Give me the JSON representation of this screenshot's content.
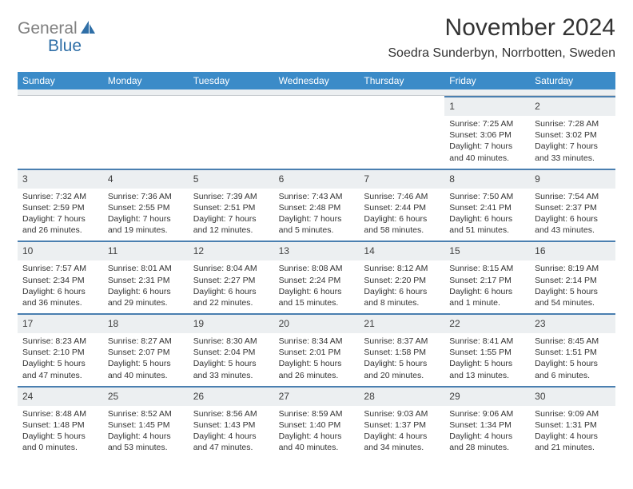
{
  "colors": {
    "header_bg": "#3b8bc8",
    "cell_rule": "#4a7fb0",
    "daynum_bg": "#eceff1",
    "logo_gray": "#808080",
    "logo_blue": "#2f6fa7",
    "text": "#333333"
  },
  "logo": {
    "gray": "General",
    "blue": "Blue"
  },
  "title": "November 2024",
  "location": "Soedra Sunderbyn, Norrbotten, Sweden",
  "weekdays": [
    "Sunday",
    "Monday",
    "Tuesday",
    "Wednesday",
    "Thursday",
    "Friday",
    "Saturday"
  ],
  "weeks": [
    [
      null,
      null,
      null,
      null,
      null,
      {
        "n": "1",
        "sr": "Sunrise: 7:25 AM",
        "ss": "Sunset: 3:06 PM",
        "d1": "Daylight: 7 hours",
        "d2": "and 40 minutes."
      },
      {
        "n": "2",
        "sr": "Sunrise: 7:28 AM",
        "ss": "Sunset: 3:02 PM",
        "d1": "Daylight: 7 hours",
        "d2": "and 33 minutes."
      }
    ],
    [
      {
        "n": "3",
        "sr": "Sunrise: 7:32 AM",
        "ss": "Sunset: 2:59 PM",
        "d1": "Daylight: 7 hours",
        "d2": "and 26 minutes."
      },
      {
        "n": "4",
        "sr": "Sunrise: 7:36 AM",
        "ss": "Sunset: 2:55 PM",
        "d1": "Daylight: 7 hours",
        "d2": "and 19 minutes."
      },
      {
        "n": "5",
        "sr": "Sunrise: 7:39 AM",
        "ss": "Sunset: 2:51 PM",
        "d1": "Daylight: 7 hours",
        "d2": "and 12 minutes."
      },
      {
        "n": "6",
        "sr": "Sunrise: 7:43 AM",
        "ss": "Sunset: 2:48 PM",
        "d1": "Daylight: 7 hours",
        "d2": "and 5 minutes."
      },
      {
        "n": "7",
        "sr": "Sunrise: 7:46 AM",
        "ss": "Sunset: 2:44 PM",
        "d1": "Daylight: 6 hours",
        "d2": "and 58 minutes."
      },
      {
        "n": "8",
        "sr": "Sunrise: 7:50 AM",
        "ss": "Sunset: 2:41 PM",
        "d1": "Daylight: 6 hours",
        "d2": "and 51 minutes."
      },
      {
        "n": "9",
        "sr": "Sunrise: 7:54 AM",
        "ss": "Sunset: 2:37 PM",
        "d1": "Daylight: 6 hours",
        "d2": "and 43 minutes."
      }
    ],
    [
      {
        "n": "10",
        "sr": "Sunrise: 7:57 AM",
        "ss": "Sunset: 2:34 PM",
        "d1": "Daylight: 6 hours",
        "d2": "and 36 minutes."
      },
      {
        "n": "11",
        "sr": "Sunrise: 8:01 AM",
        "ss": "Sunset: 2:31 PM",
        "d1": "Daylight: 6 hours",
        "d2": "and 29 minutes."
      },
      {
        "n": "12",
        "sr": "Sunrise: 8:04 AM",
        "ss": "Sunset: 2:27 PM",
        "d1": "Daylight: 6 hours",
        "d2": "and 22 minutes."
      },
      {
        "n": "13",
        "sr": "Sunrise: 8:08 AM",
        "ss": "Sunset: 2:24 PM",
        "d1": "Daylight: 6 hours",
        "d2": "and 15 minutes."
      },
      {
        "n": "14",
        "sr": "Sunrise: 8:12 AM",
        "ss": "Sunset: 2:20 PM",
        "d1": "Daylight: 6 hours",
        "d2": "and 8 minutes."
      },
      {
        "n": "15",
        "sr": "Sunrise: 8:15 AM",
        "ss": "Sunset: 2:17 PM",
        "d1": "Daylight: 6 hours",
        "d2": "and 1 minute."
      },
      {
        "n": "16",
        "sr": "Sunrise: 8:19 AM",
        "ss": "Sunset: 2:14 PM",
        "d1": "Daylight: 5 hours",
        "d2": "and 54 minutes."
      }
    ],
    [
      {
        "n": "17",
        "sr": "Sunrise: 8:23 AM",
        "ss": "Sunset: 2:10 PM",
        "d1": "Daylight: 5 hours",
        "d2": "and 47 minutes."
      },
      {
        "n": "18",
        "sr": "Sunrise: 8:27 AM",
        "ss": "Sunset: 2:07 PM",
        "d1": "Daylight: 5 hours",
        "d2": "and 40 minutes."
      },
      {
        "n": "19",
        "sr": "Sunrise: 8:30 AM",
        "ss": "Sunset: 2:04 PM",
        "d1": "Daylight: 5 hours",
        "d2": "and 33 minutes."
      },
      {
        "n": "20",
        "sr": "Sunrise: 8:34 AM",
        "ss": "Sunset: 2:01 PM",
        "d1": "Daylight: 5 hours",
        "d2": "and 26 minutes."
      },
      {
        "n": "21",
        "sr": "Sunrise: 8:37 AM",
        "ss": "Sunset: 1:58 PM",
        "d1": "Daylight: 5 hours",
        "d2": "and 20 minutes."
      },
      {
        "n": "22",
        "sr": "Sunrise: 8:41 AM",
        "ss": "Sunset: 1:55 PM",
        "d1": "Daylight: 5 hours",
        "d2": "and 13 minutes."
      },
      {
        "n": "23",
        "sr": "Sunrise: 8:45 AM",
        "ss": "Sunset: 1:51 PM",
        "d1": "Daylight: 5 hours",
        "d2": "and 6 minutes."
      }
    ],
    [
      {
        "n": "24",
        "sr": "Sunrise: 8:48 AM",
        "ss": "Sunset: 1:48 PM",
        "d1": "Daylight: 5 hours",
        "d2": "and 0 minutes."
      },
      {
        "n": "25",
        "sr": "Sunrise: 8:52 AM",
        "ss": "Sunset: 1:45 PM",
        "d1": "Daylight: 4 hours",
        "d2": "and 53 minutes."
      },
      {
        "n": "26",
        "sr": "Sunrise: 8:56 AM",
        "ss": "Sunset: 1:43 PM",
        "d1": "Daylight: 4 hours",
        "d2": "and 47 minutes."
      },
      {
        "n": "27",
        "sr": "Sunrise: 8:59 AM",
        "ss": "Sunset: 1:40 PM",
        "d1": "Daylight: 4 hours",
        "d2": "and 40 minutes."
      },
      {
        "n": "28",
        "sr": "Sunrise: 9:03 AM",
        "ss": "Sunset: 1:37 PM",
        "d1": "Daylight: 4 hours",
        "d2": "and 34 minutes."
      },
      {
        "n": "29",
        "sr": "Sunrise: 9:06 AM",
        "ss": "Sunset: 1:34 PM",
        "d1": "Daylight: 4 hours",
        "d2": "and 28 minutes."
      },
      {
        "n": "30",
        "sr": "Sunrise: 9:09 AM",
        "ss": "Sunset: 1:31 PM",
        "d1": "Daylight: 4 hours",
        "d2": "and 21 minutes."
      }
    ]
  ]
}
